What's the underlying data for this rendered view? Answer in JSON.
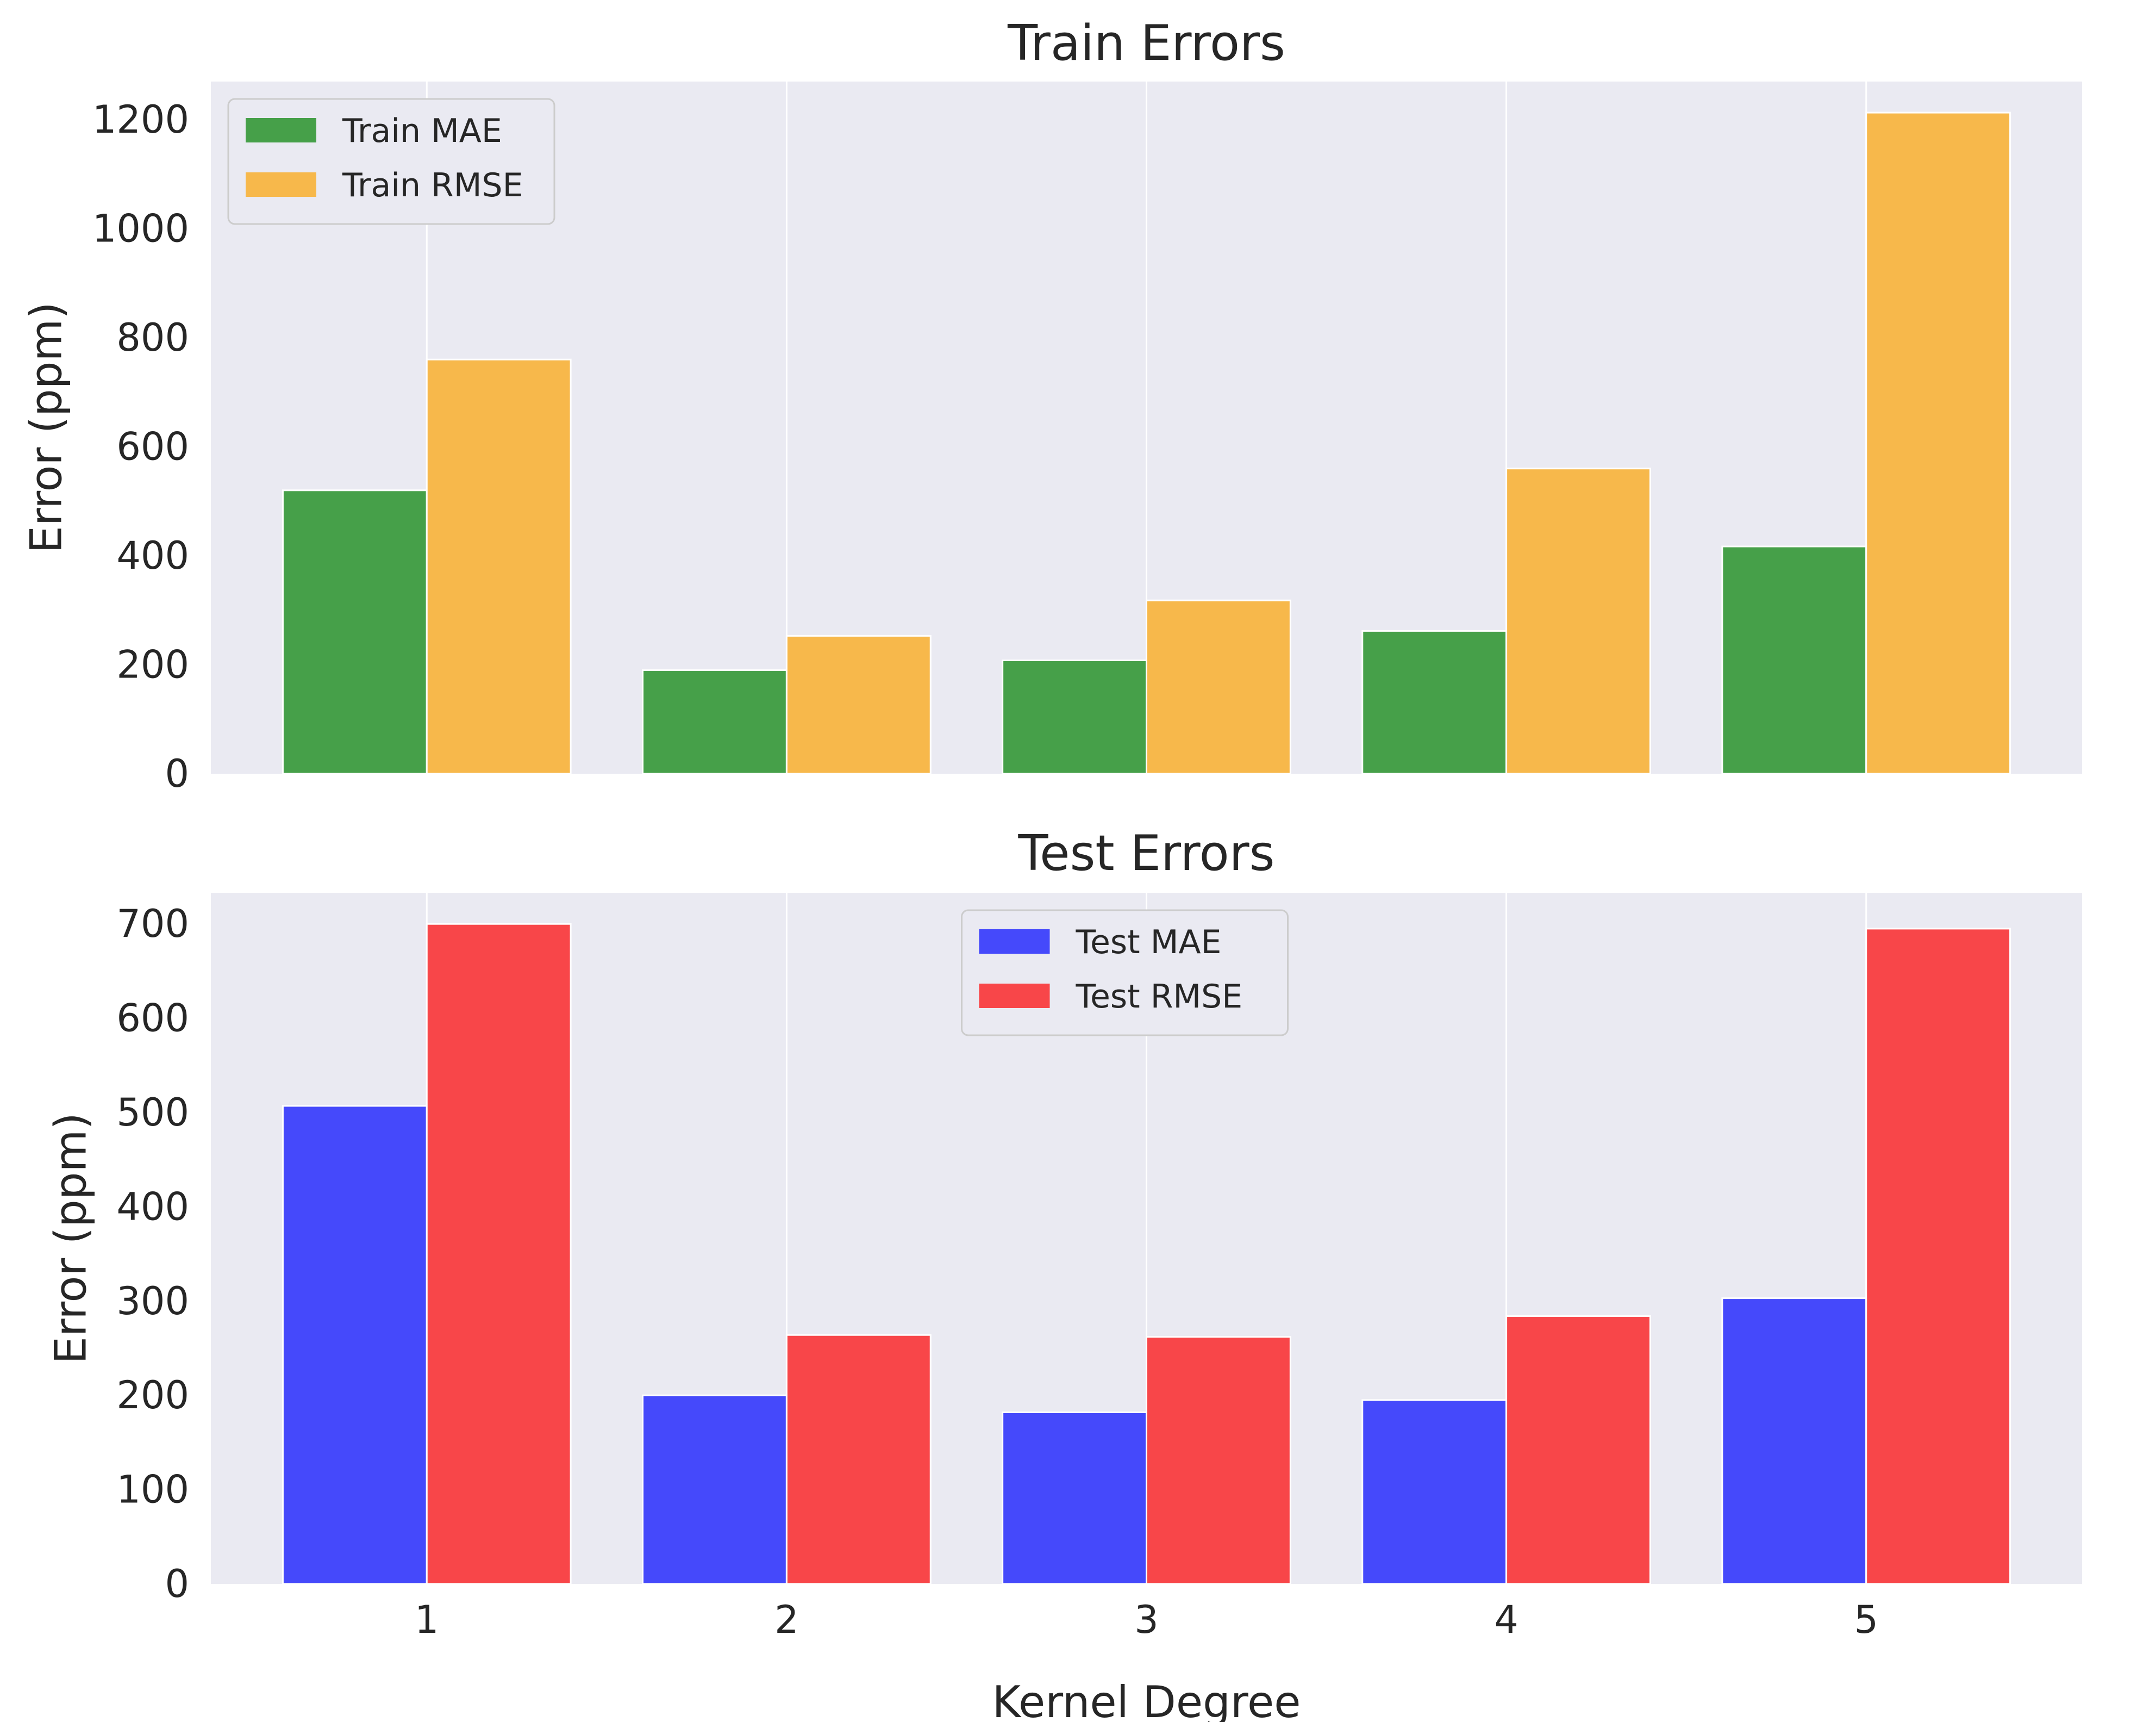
{
  "chart_data": [
    {
      "type": "bar",
      "title": "Train Errors",
      "xlabel": "",
      "ylabel": "Error (ppm)",
      "categories": [
        "1",
        "2",
        "3",
        "4",
        "5"
      ],
      "ylim": [
        0,
        1270
      ],
      "yticks": [
        0,
        200,
        400,
        600,
        800,
        1000,
        1200
      ],
      "grid": true,
      "legend_position": "upper left",
      "show_x_ticks": false,
      "series": [
        {
          "name": "Train MAE",
          "color": "#46a049",
          "values": [
            520,
            190,
            208,
            262,
            417
          ]
        },
        {
          "name": "Train RMSE",
          "color": "#f7b84b",
          "values": [
            760,
            253,
            318,
            560,
            1213
          ]
        }
      ]
    },
    {
      "type": "bar",
      "title": "Test Errors",
      "xlabel": "Kernel Degree",
      "ylabel": "Error (ppm)",
      "categories": [
        "1",
        "2",
        "3",
        "4",
        "5"
      ],
      "ylim": [
        0,
        733
      ],
      "yticks": [
        0,
        100,
        200,
        300,
        400,
        500,
        600,
        700
      ],
      "grid": true,
      "legend_position": "upper center",
      "show_x_ticks": true,
      "series": [
        {
          "name": "Test MAE",
          "color": "#4549fb",
          "values": [
            507,
            200,
            182,
            195,
            303
          ]
        },
        {
          "name": "Test RMSE",
          "color": "#f84649",
          "values": [
            700,
            264,
            262,
            284,
            695
          ]
        }
      ]
    }
  ]
}
